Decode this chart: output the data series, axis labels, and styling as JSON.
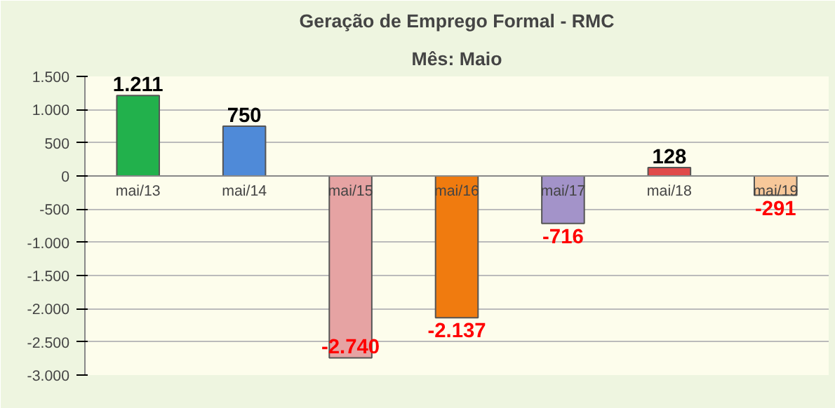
{
  "chart_data": {
    "type": "bar",
    "title": "Geração de Emprego Formal - RMC",
    "subtitle": "Mês: Maio",
    "categories": [
      "mai/13",
      "mai/14",
      "mai/15",
      "mai/16",
      "mai/17",
      "mai/18",
      "mai/19"
    ],
    "values": [
      1211,
      750,
      -2740,
      -2137,
      -716,
      128,
      -291
    ],
    "colors": [
      "#22b14c",
      "#4f8ad8",
      "#e6a3a3",
      "#f07b0f",
      "#a393c9",
      "#e04a4a",
      "#f7c89a"
    ],
    "value_labels": [
      "1.211",
      "750",
      "-2.740",
      "-2.137",
      "-716",
      "128",
      "-291"
    ],
    "ylim": [
      -3000,
      1500
    ],
    "yticks": [
      {
        "value": -3000,
        "label": "-3.000"
      },
      {
        "value": -2500,
        "label": "-2.500"
      },
      {
        "value": -2000,
        "label": "-2.000"
      },
      {
        "value": -1500,
        "label": "-1.500"
      },
      {
        "value": -1000,
        "label": "-1.000"
      },
      {
        "value": -500,
        "label": "-500"
      },
      0,
      500,
      {
        "value": 1000,
        "label": "1.000"
      },
      {
        "value": 1500,
        "label": "1.500"
      }
    ],
    "grid": "y"
  }
}
